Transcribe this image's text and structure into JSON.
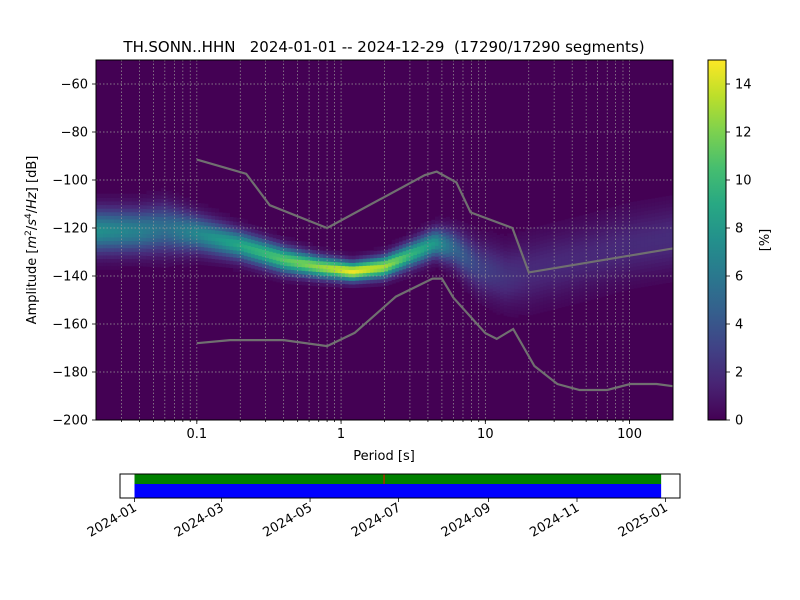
{
  "chart_data": [
    {
      "type": "heatmap",
      "title": "TH.SONN..HHN   2024-01-01 -- 2024-12-29  (17290/17290 segments)",
      "xlabel": "Period [s]",
      "ylabel_parts": [
        "Amplitude [",
        "m",
        "2",
        "/",
        "s",
        "4",
        "/",
        "Hz",
        "] [dB]"
      ],
      "xscale": "log",
      "xlim": [
        0.02,
        200
      ],
      "ylim": [
        -200,
        -50
      ],
      "xticks": [
        {
          "v": 0.1,
          "label": "0.1"
        },
        {
          "v": 1,
          "label": "1"
        },
        {
          "v": 10,
          "label": "10"
        },
        {
          "v": 100,
          "label": "100"
        }
      ],
      "yticks": [
        {
          "v": -60,
          "label": "−60"
        },
        {
          "v": -80,
          "label": "−80"
        },
        {
          "v": -100,
          "label": "−100"
        },
        {
          "v": -120,
          "label": "−120"
        },
        {
          "v": -140,
          "label": "−140"
        },
        {
          "v": -160,
          "label": "−160"
        },
        {
          "v": -180,
          "label": "−180"
        },
        {
          "v": -200,
          "label": "−200"
        }
      ],
      "grid": true,
      "colormap": "viridis",
      "colorbar": {
        "label": "[%]",
        "range": [
          0,
          15
        ],
        "ticks": [
          {
            "v": 0,
            "label": "0"
          },
          {
            "v": 2,
            "label": "2"
          },
          {
            "v": 4,
            "label": "4"
          },
          {
            "v": 6,
            "label": "6"
          },
          {
            "v": 8,
            "label": "8"
          },
          {
            "v": 10,
            "label": "10"
          },
          {
            "v": 12,
            "label": "12"
          },
          {
            "v": 14,
            "label": "14"
          }
        ]
      },
      "density_ridge": [
        {
          "period": 0.02,
          "db": -121,
          "peak": 7.5,
          "width": 6
        },
        {
          "period": 0.04,
          "db": -121,
          "peak": 6.5,
          "width": 6
        },
        {
          "period": 0.06,
          "db": -120,
          "peak": 5.5,
          "width": 6.5
        },
        {
          "period": 0.1,
          "db": -122,
          "peak": 7,
          "width": 5
        },
        {
          "period": 0.2,
          "db": -127,
          "peak": 9,
          "width": 4
        },
        {
          "period": 0.4,
          "db": -133,
          "peak": 11,
          "width": 3.6
        },
        {
          "period": 0.7,
          "db": -136,
          "peak": 12.5,
          "width": 3
        },
        {
          "period": 1.2,
          "db": -138,
          "peak": 14.8,
          "width": 2.6
        },
        {
          "period": 2,
          "db": -136,
          "peak": 13,
          "width": 3
        },
        {
          "period": 3,
          "db": -131,
          "peak": 10,
          "width": 3.5
        },
        {
          "period": 4.5,
          "db": -126,
          "peak": 8,
          "width": 4
        },
        {
          "period": 6,
          "db": -128,
          "peak": 5,
          "width": 5
        },
        {
          "period": 9,
          "db": -136,
          "peak": 3,
          "width": 7
        },
        {
          "period": 14,
          "db": -140,
          "peak": 2.2,
          "width": 8
        },
        {
          "period": 20,
          "db": -138,
          "peak": 1.8,
          "width": 9
        },
        {
          "period": 50,
          "db": -132,
          "peak": 1.7,
          "width": 9
        },
        {
          "period": 100,
          "db": -127,
          "peak": 1.8,
          "width": 9
        },
        {
          "period": 200,
          "db": -124,
          "peak": 1.9,
          "width": 9
        }
      ],
      "nhnm": [
        [
          0.1,
          -91.5
        ],
        [
          0.22,
          -97.4
        ],
        [
          0.32,
          -110.5
        ],
        [
          0.8,
          -120
        ],
        [
          3.8,
          -98
        ],
        [
          4.6,
          -96.5
        ],
        [
          6.3,
          -101
        ],
        [
          7.9,
          -113.5
        ],
        [
          15.4,
          -120
        ],
        [
          20,
          -138.5
        ],
        [
          200,
          -128.5
        ]
      ],
      "nlnm": [
        [
          0.1,
          -168
        ],
        [
          0.17,
          -166.7
        ],
        [
          0.4,
          -166.7
        ],
        [
          0.8,
          -169.2
        ],
        [
          1.24,
          -163.7
        ],
        [
          2.4,
          -148.6
        ],
        [
          4.3,
          -141.1
        ],
        [
          5,
          -141.1
        ],
        [
          6,
          -149
        ],
        [
          10,
          -163.8
        ],
        [
          12,
          -166.2
        ],
        [
          15.6,
          -162.1
        ],
        [
          21.9,
          -177.5
        ],
        [
          31.6,
          -185
        ],
        [
          45,
          -187.5
        ],
        [
          70,
          -187.5
        ],
        [
          101,
          -185
        ],
        [
          154,
          -185
        ],
        [
          200,
          -185.9
        ]
      ]
    },
    {
      "type": "timeline",
      "xlim": [
        "2023-12-22",
        "2025-01-11"
      ],
      "coverage": [
        "2024-01-01",
        "2024-12-29"
      ],
      "colors": {
        "data": "#0000ff",
        "psd": "#008000",
        "gap": "#ff0000"
      },
      "xticks": [
        "2024-01",
        "2024-03",
        "2024-05",
        "2024-07",
        "2024-09",
        "2024-11",
        "2025-01"
      ]
    }
  ]
}
